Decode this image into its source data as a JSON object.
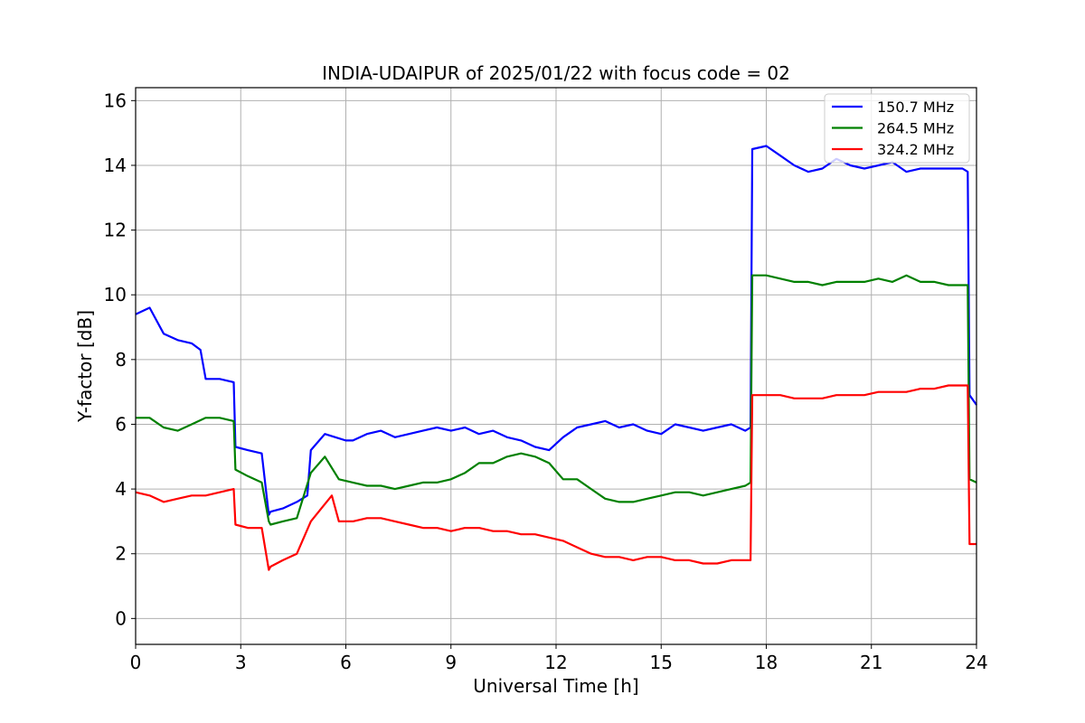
{
  "chart_data": {
    "type": "line",
    "title": "INDIA-UDAIPUR of 2025/01/22 with focus code = 02",
    "xlabel": "Universal Time [h]",
    "ylabel": "Y-factor [dB]",
    "xlim": [
      0,
      24
    ],
    "ylim": [
      -0.8,
      16.4
    ],
    "xticks": [
      0,
      3,
      6,
      9,
      12,
      15,
      18,
      21,
      24
    ],
    "yticks": [
      0,
      2,
      4,
      6,
      8,
      10,
      12,
      14,
      16
    ],
    "grid": true,
    "legend_position": "top-right",
    "series": [
      {
        "name": "150.7 MHz",
        "color": "#0000ff",
        "x": [
          0,
          0.4,
          0.8,
          1.2,
          1.6,
          1.85,
          2.0,
          2.4,
          2.8,
          2.85,
          3.2,
          3.6,
          3.8,
          3.85,
          4.2,
          4.6,
          4.9,
          5.0,
          5.4,
          5.7,
          6.0,
          6.2,
          6.6,
          7.0,
          7.4,
          7.8,
          8.2,
          8.6,
          9.0,
          9.4,
          9.8,
          10.2,
          10.6,
          11.0,
          11.4,
          11.8,
          12.2,
          12.6,
          13.0,
          13.4,
          13.8,
          14.2,
          14.6,
          15.0,
          15.4,
          15.8,
          16.2,
          16.6,
          17.0,
          17.4,
          17.55,
          17.6,
          18.0,
          18.4,
          18.8,
          19.2,
          19.6,
          20.0,
          20.4,
          20.8,
          21.2,
          21.6,
          22.0,
          22.4,
          22.8,
          23.2,
          23.6,
          23.75,
          23.8,
          24.0
        ],
        "y": [
          9.4,
          9.6,
          8.8,
          8.6,
          8.5,
          8.3,
          7.4,
          7.4,
          7.3,
          5.3,
          5.2,
          5.1,
          3.2,
          3.3,
          3.4,
          3.6,
          3.8,
          5.2,
          5.7,
          5.6,
          5.5,
          5.5,
          5.7,
          5.8,
          5.6,
          5.7,
          5.8,
          5.9,
          5.8,
          5.9,
          5.7,
          5.8,
          5.6,
          5.5,
          5.3,
          5.2,
          5.6,
          5.9,
          6.0,
          6.1,
          5.9,
          6.0,
          5.8,
          5.7,
          6.0,
          5.9,
          5.8,
          5.9,
          6.0,
          5.8,
          5.9,
          14.5,
          14.6,
          14.3,
          14.0,
          13.8,
          13.9,
          14.2,
          14.0,
          13.9,
          14.0,
          14.1,
          13.8,
          13.9,
          13.9,
          13.9,
          13.9,
          13.8,
          6.9,
          6.6
        ]
      },
      {
        "name": "264.5 MHz",
        "color": "#008000",
        "x": [
          0,
          0.4,
          0.8,
          1.2,
          1.6,
          2.0,
          2.4,
          2.8,
          2.85,
          3.2,
          3.6,
          3.8,
          3.85,
          4.2,
          4.6,
          5.0,
          5.4,
          5.8,
          6.2,
          6.6,
          7.0,
          7.4,
          7.8,
          8.2,
          8.6,
          9.0,
          9.4,
          9.8,
          10.2,
          10.6,
          11.0,
          11.4,
          11.8,
          12.2,
          12.6,
          13.0,
          13.4,
          13.8,
          14.2,
          14.6,
          15.0,
          15.4,
          15.8,
          16.2,
          16.6,
          17.0,
          17.4,
          17.55,
          17.6,
          18.0,
          18.4,
          18.8,
          19.2,
          19.6,
          20.0,
          20.4,
          20.8,
          21.2,
          21.6,
          22.0,
          22.4,
          22.8,
          23.2,
          23.6,
          23.75,
          23.8,
          24.0
        ],
        "y": [
          6.2,
          6.2,
          5.9,
          5.8,
          6.0,
          6.2,
          6.2,
          6.1,
          4.6,
          4.4,
          4.2,
          3.0,
          2.9,
          3.0,
          3.1,
          4.5,
          5.0,
          4.3,
          4.2,
          4.1,
          4.1,
          4.0,
          4.1,
          4.2,
          4.2,
          4.3,
          4.5,
          4.8,
          4.8,
          5.0,
          5.1,
          5.0,
          4.8,
          4.3,
          4.3,
          4.0,
          3.7,
          3.6,
          3.6,
          3.7,
          3.8,
          3.9,
          3.9,
          3.8,
          3.9,
          4.0,
          4.1,
          4.2,
          10.6,
          10.6,
          10.5,
          10.4,
          10.4,
          10.3,
          10.4,
          10.4,
          10.4,
          10.5,
          10.4,
          10.6,
          10.4,
          10.4,
          10.3,
          10.3,
          10.3,
          4.3,
          4.2
        ]
      },
      {
        "name": "324.2 MHz",
        "color": "#ff0000",
        "x": [
          0,
          0.4,
          0.8,
          1.2,
          1.6,
          2.0,
          2.4,
          2.8,
          2.85,
          3.2,
          3.6,
          3.8,
          3.85,
          4.2,
          4.6,
          5.0,
          5.3,
          5.6,
          5.8,
          6.2,
          6.6,
          7.0,
          7.4,
          7.8,
          8.2,
          8.6,
          9.0,
          9.4,
          9.8,
          10.2,
          10.6,
          11.0,
          11.4,
          11.8,
          12.2,
          12.6,
          13.0,
          13.4,
          13.8,
          14.2,
          14.6,
          15.0,
          15.4,
          15.8,
          16.2,
          16.6,
          17.0,
          17.4,
          17.55,
          17.6,
          18.0,
          18.4,
          18.8,
          19.2,
          19.6,
          20.0,
          20.4,
          20.8,
          21.2,
          21.6,
          22.0,
          22.4,
          22.8,
          23.2,
          23.6,
          23.75,
          23.8,
          24.0
        ],
        "y": [
          3.9,
          3.8,
          3.6,
          3.7,
          3.8,
          3.8,
          3.9,
          4.0,
          2.9,
          2.8,
          2.8,
          1.5,
          1.6,
          1.8,
          2.0,
          3.0,
          3.4,
          3.8,
          3.0,
          3.0,
          3.1,
          3.1,
          3.0,
          2.9,
          2.8,
          2.8,
          2.7,
          2.8,
          2.8,
          2.7,
          2.7,
          2.6,
          2.6,
          2.5,
          2.4,
          2.2,
          2.0,
          1.9,
          1.9,
          1.8,
          1.9,
          1.9,
          1.8,
          1.8,
          1.7,
          1.7,
          1.8,
          1.8,
          1.8,
          6.9,
          6.9,
          6.9,
          6.8,
          6.8,
          6.8,
          6.9,
          6.9,
          6.9,
          7.0,
          7.0,
          7.0,
          7.1,
          7.1,
          7.2,
          7.2,
          7.2,
          2.3,
          2.3
        ]
      }
    ]
  }
}
